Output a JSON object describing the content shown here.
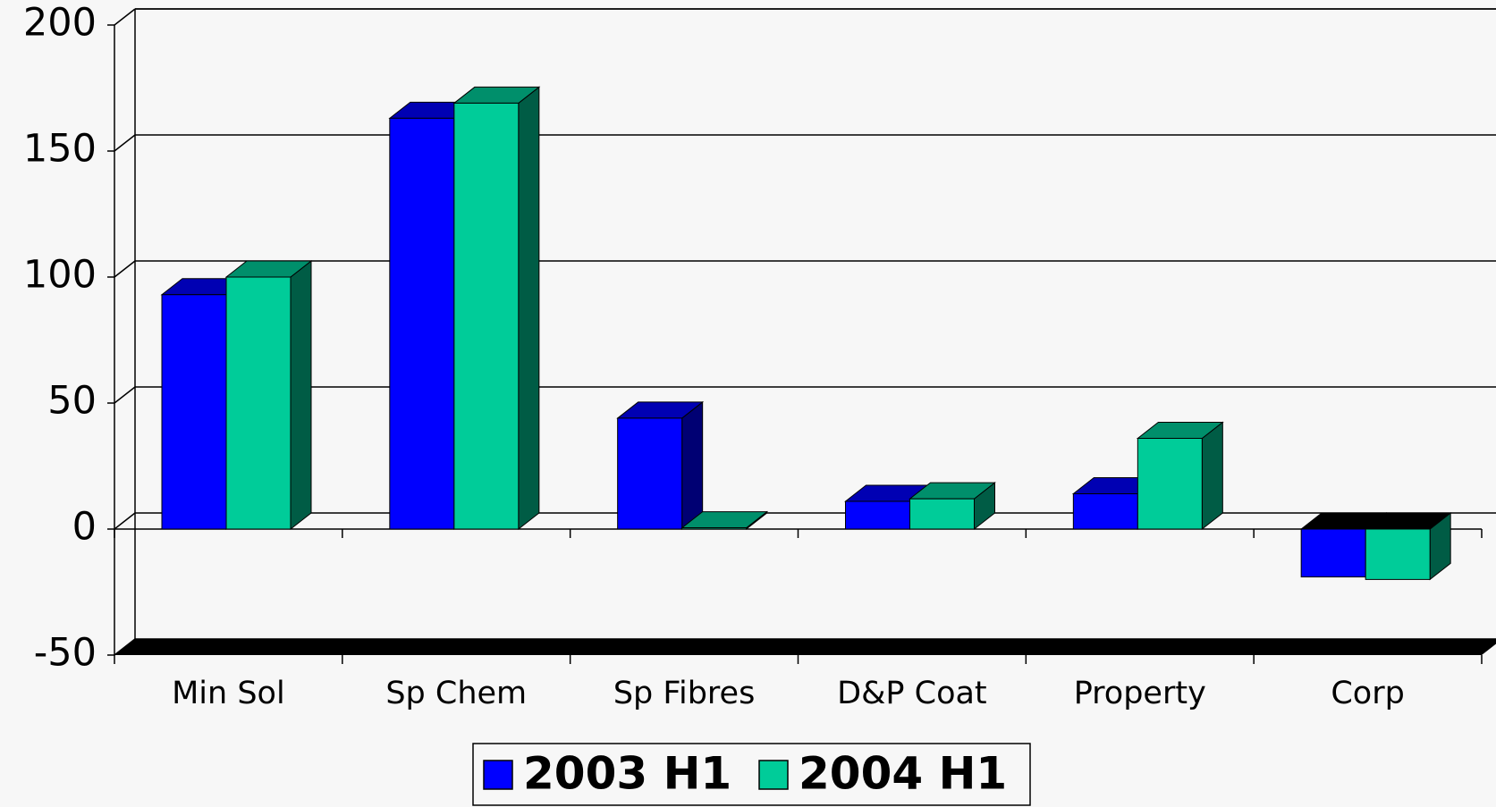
{
  "chart_data": {
    "type": "bar3d",
    "categories": [
      "Min Sol",
      "Sp Chem",
      "Sp Fibres",
      "D&P Coat",
      "Property",
      "Corp"
    ],
    "series": [
      {
        "name": "2003 H1",
        "color": "#0000ff",
        "values": [
          93,
          163,
          44,
          11,
          14,
          -19
        ]
      },
      {
        "name": "2004 H1",
        "color": "#00cc99",
        "values": [
          100,
          169,
          0.5,
          12,
          36,
          -20
        ]
      }
    ],
    "ylim": [
      -50,
      200
    ],
    "yticks": [
      -50,
      0,
      50,
      100,
      150,
      200
    ],
    "grid": true,
    "legend": "bottom"
  }
}
